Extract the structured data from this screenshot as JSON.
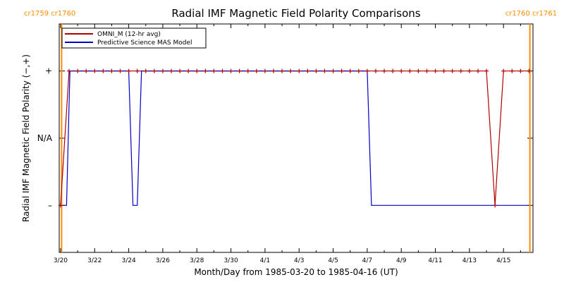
{
  "chart_data": {
    "type": "line",
    "title": "Radial IMF Magnetic Field Polarity Comparisons",
    "xlabel": "Month/Day from 1985-03-20 to 1985-04-16 (UT)",
    "ylabel": "Radial IMF Magnetic Field Polarity (−,+)",
    "xlim": [
      -0.08,
      27.73
    ],
    "ylim": [
      -1.7,
      1.7
    ],
    "x_ticks": [
      {
        "x": 0,
        "label": "3/20"
      },
      {
        "x": 2,
        "label": "3/22"
      },
      {
        "x": 4,
        "label": "3/24"
      },
      {
        "x": 6,
        "label": "3/26"
      },
      {
        "x": 8,
        "label": "3/28"
      },
      {
        "x": 10,
        "label": "3/30"
      },
      {
        "x": 12,
        "label": "4/1"
      },
      {
        "x": 14,
        "label": "4/3"
      },
      {
        "x": 16,
        "label": "4/5"
      },
      {
        "x": 18,
        "label": "4/7"
      },
      {
        "x": 20,
        "label": "4/9"
      },
      {
        "x": 22,
        "label": "4/11"
      },
      {
        "x": 24,
        "label": "4/13"
      },
      {
        "x": 26,
        "label": "4/15"
      }
    ],
    "y_ticks": [
      {
        "y": 1,
        "label": "+"
      },
      {
        "y": 0,
        "label": "N/A"
      },
      {
        "y": -1,
        "label": "–"
      }
    ],
    "carrington": [
      {
        "x": 0.06,
        "left": "cr1759",
        "right": "cr1760",
        "label_side": "left"
      },
      {
        "x": 27.55,
        "left": "cr1760",
        "right": "cr1761",
        "label_side": "right"
      }
    ],
    "legend": {
      "position": "top-left"
    },
    "series": [
      {
        "name": "OMNI_M (12-hr avg)",
        "color": "#b00000",
        "marker": "+",
        "x": [
          0.0,
          0.5,
          1.0,
          1.5,
          2.0,
          2.5,
          3.0,
          3.5,
          4.0,
          4.5,
          5.0,
          5.5,
          6.0,
          6.5,
          7.0,
          7.5,
          8.0,
          8.5,
          9.0,
          9.5,
          10.0,
          10.5,
          11.0,
          11.5,
          12.0,
          12.5,
          13.0,
          13.5,
          14.0,
          14.5,
          15.0,
          15.5,
          16.0,
          16.5,
          17.0,
          17.5,
          18.0,
          18.5,
          19.0,
          19.5,
          20.0,
          20.5,
          21.0,
          21.5,
          22.0,
          22.5,
          23.0,
          23.5,
          24.0,
          24.5,
          25.0,
          25.5,
          26.0,
          26.5,
          27.0,
          27.5
        ],
        "y": [
          -1,
          1,
          1,
          1,
          1,
          1,
          1,
          1,
          1,
          1,
          1,
          1,
          1,
          1,
          1,
          1,
          1,
          1,
          1,
          1,
          1,
          1,
          1,
          1,
          1,
          1,
          1,
          1,
          1,
          1,
          1,
          1,
          1,
          1,
          1,
          1,
          1,
          1,
          1,
          1,
          1,
          1,
          1,
          1,
          1,
          1,
          1,
          1,
          1,
          1,
          1,
          -1,
          1,
          1,
          1,
          1
        ]
      },
      {
        "name": "Predictive Science MAS Model",
        "color": "#0000c8",
        "x": [
          0.1,
          0.35,
          0.55,
          4.0,
          4.25,
          4.5,
          4.75,
          18.0,
          18.25,
          27.5
        ],
        "y": [
          -1,
          -1,
          1,
          1,
          -1,
          -1,
          1,
          1,
          -1,
          -1
        ]
      }
    ]
  }
}
